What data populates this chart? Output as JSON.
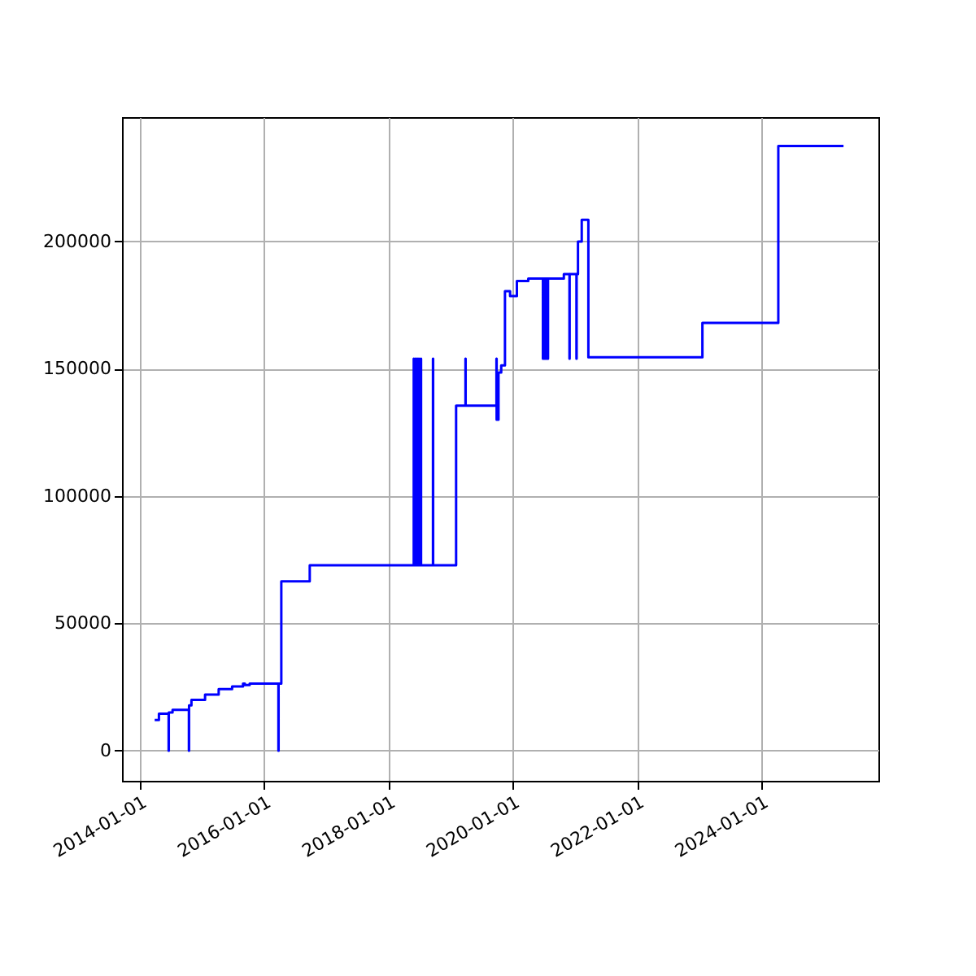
{
  "chart_data": {
    "type": "step",
    "x": [
      "2014-03-29",
      "2014-04-23",
      "2014-06-19",
      "2014-06-20",
      "2014-07-12",
      "2014-10-16",
      "2014-10-17",
      "2014-10-31",
      "2015-01-19",
      "2015-04-09",
      "2015-06-27",
      "2015-08-30",
      "2015-09-10",
      "2015-10-08",
      "2016-03-25",
      "2016-03-26",
      "2016-04-11",
      "2016-09-25",
      "2018-05-29",
      "2018-05-30",
      "2018-06-08",
      "2018-06-09",
      "2018-06-18",
      "2018-06-19",
      "2018-06-28",
      "2018-06-29",
      "2018-07-10",
      "2018-07-11",
      "2018-09-19",
      "2018-09-20",
      "2019-02-02",
      "2019-03-29",
      "2019-03-30",
      "2019-09-27",
      "2019-09-28",
      "2019-10-09",
      "2019-10-25",
      "2019-11-16",
      "2019-12-16",
      "2020-01-25",
      "2020-04-01",
      "2020-06-26",
      "2020-06-27",
      "2020-07-05",
      "2020-07-06",
      "2020-07-15",
      "2020-07-16",
      "2020-07-25",
      "2020-07-26",
      "2020-10-27",
      "2020-11-29",
      "2020-11-30",
      "2021-01-09",
      "2021-01-10",
      "2021-01-18",
      "2021-02-09",
      "2021-03-20",
      "2023-01-19",
      "2024-04-09",
      "2025-04-27"
    ],
    "series": [
      {
        "color": "#0000ff",
        "values": [
          12000,
          14500,
          0,
          15000,
          16000,
          0,
          17800,
          19900,
          22000,
          24200,
          25200,
          26300,
          25800,
          26300,
          0,
          26300,
          66500,
          72800,
          154000,
          72800,
          154000,
          72800,
          154000,
          72800,
          154000,
          72800,
          154000,
          72800,
          154000,
          72800,
          135500,
          154000,
          135500,
          154000,
          130000,
          148500,
          151300,
          180500,
          178600,
          184500,
          185400,
          154000,
          185400,
          154000,
          185400,
          154000,
          185400,
          154000,
          185400,
          187200,
          154000,
          187200,
          154000,
          187200,
          200000,
          208500,
          154500,
          168000,
          237500,
          237500
        ]
      }
    ],
    "xlim": [
      "2013-09-18",
      "2025-11-18"
    ],
    "ylim": [
      -11850,
      248850
    ],
    "xticks": [
      {
        "value": "2014-01-01",
        "label": "2014-01-01"
      },
      {
        "value": "2016-01-01",
        "label": "2016-01-01"
      },
      {
        "value": "2018-01-01",
        "label": "2018-01-01"
      },
      {
        "value": "2020-01-01",
        "label": "2020-01-01"
      },
      {
        "value": "2022-01-01",
        "label": "2022-01-01"
      },
      {
        "value": "2024-01-01",
        "label": "2024-01-01"
      }
    ],
    "yticks": [
      0,
      50000,
      100000,
      150000,
      200000
    ],
    "grid": true,
    "marker": "none",
    "line_style": "solid"
  }
}
